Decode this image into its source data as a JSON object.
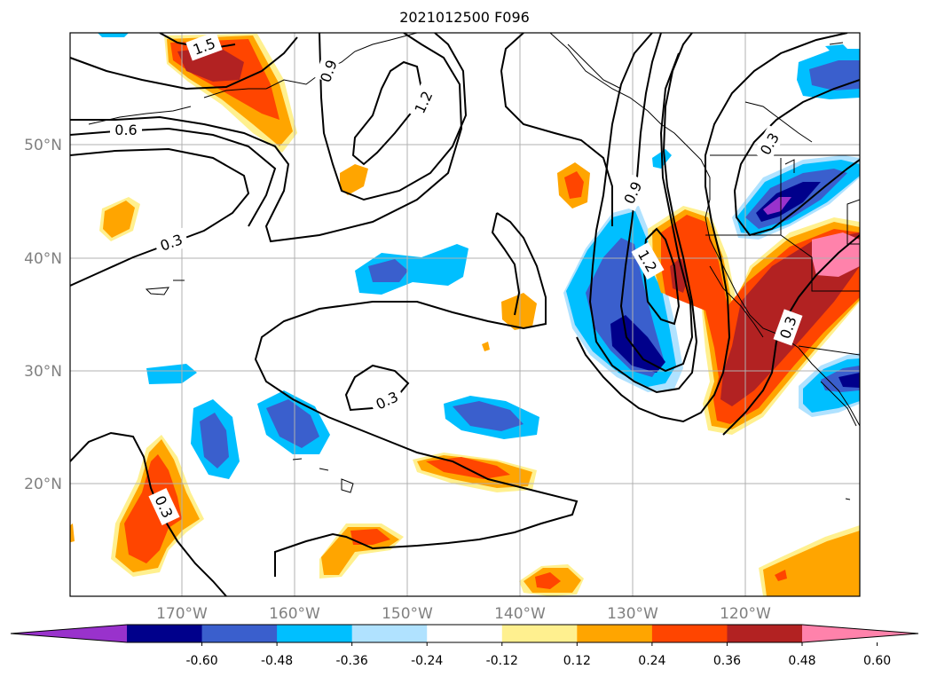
{
  "title": "2021012500 F096",
  "map": {
    "lat_labels": [
      "50°N",
      "40°N",
      "30°N",
      "20°N"
    ],
    "lon_labels": [
      "170°W",
      "160°W",
      "150°W",
      "140°W",
      "130°W",
      "120°W"
    ],
    "contour_labels": [
      "1.5",
      "0.9",
      "1.2",
      "0.6",
      "0.3",
      "0.9",
      "1.2",
      "0.3",
      "0.3",
      "0.3",
      "0.3"
    ]
  },
  "colorbar": {
    "tick_labels": [
      "-0.60",
      "-0.48",
      "-0.36",
      "-0.24",
      "-0.12",
      "0.12",
      "0.24",
      "0.36",
      "0.48",
      "0.60"
    ],
    "colors": [
      "#9932cc",
      "#00008b",
      "#3a5fcd",
      "#00bfff",
      "#b0e2ff",
      "#ffffff",
      "#fff08f",
      "#ffa500",
      "#ff4500",
      "#b22222",
      "#ff82ab"
    ]
  }
}
